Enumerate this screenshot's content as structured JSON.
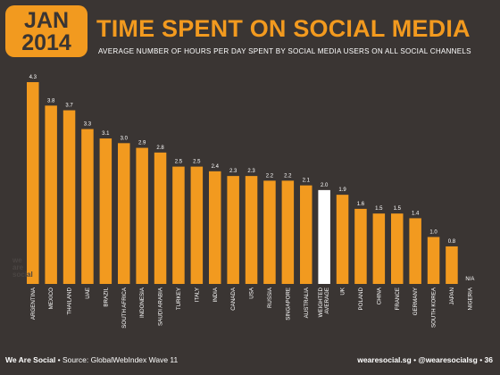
{
  "badge": {
    "month": "JAN",
    "year": "2014"
  },
  "title": "TIME SPENT ON SOCIAL MEDIA",
  "subtitle": "AVERAGE NUMBER OF HOURS PER DAY SPENT BY SOCIAL MEDIA USERS ON ALL SOCIAL CHANNELS",
  "footer": {
    "brand": "We Are Social",
    "source": "Source: GlobalWebIndex Wave 11",
    "website": "wearesocial.sg",
    "handle": "@wearesocialsg",
    "page": "36"
  },
  "watermark": "we are social",
  "colors": {
    "bar": "#f29a1f",
    "highlight": "#ffffff",
    "background": "#3a3533",
    "text": "#ffffff"
  },
  "chart_data": {
    "type": "bar",
    "categories": [
      "ARGENTINA",
      "MEXICO",
      "THAILAND",
      "UAE",
      "BRAZIL",
      "SOUTH AFRICA",
      "INDONESIA",
      "SAUDI ARABIA",
      "TURKEY",
      "ITALY",
      "INDIA",
      "CANADA",
      "USA",
      "RUSSIA",
      "SINGAPORE",
      "AUSTRALIA",
      "WEIGHTED AVERAGE",
      "UK",
      "POLAND",
      "CHINA",
      "FRANCE",
      "GERMANY",
      "SOUTH KOREA",
      "JAPAN",
      "NIGERIA"
    ],
    "values": [
      4.3,
      3.8,
      3.7,
      3.3,
      3.1,
      3.0,
      2.9,
      2.8,
      2.5,
      2.5,
      2.4,
      2.3,
      2.3,
      2.2,
      2.2,
      2.1,
      2.0,
      1.9,
      1.6,
      1.5,
      1.5,
      1.4,
      1.0,
      0.8,
      null
    ],
    "value_labels": [
      "4.3",
      "3.8",
      "3.7",
      "3.3",
      "3.1",
      "3.0",
      "2.9",
      "2.8",
      "2.5",
      "2.5",
      "2.4",
      "2.3",
      "2.3",
      "2.2",
      "2.2",
      "2.1",
      "2.0",
      "1.9",
      "1.6",
      "1.5",
      "1.5",
      "1.4",
      "1.0",
      "0.8",
      "N/A"
    ],
    "highlight_category": "WEIGHTED AVERAGE",
    "title": "TIME SPENT ON SOCIAL MEDIA",
    "xlabel": "",
    "ylabel": "",
    "ylim": [
      0,
      4.3
    ],
    "grid": false,
    "legend": "none"
  }
}
